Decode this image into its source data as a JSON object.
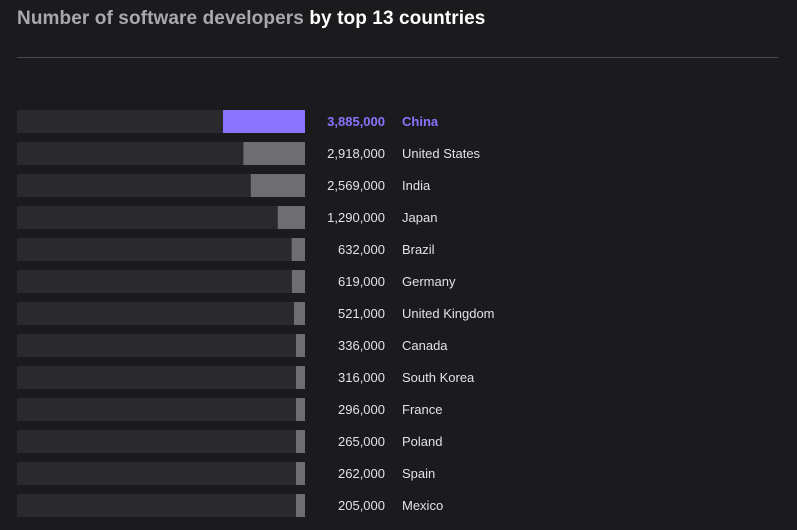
{
  "title": {
    "part1": "Number of software developers",
    "part2": "by top 13 countries"
  },
  "colors": {
    "background": "#1b1a1d",
    "track": "#2a292d",
    "bar": "#6e6d72",
    "highlight": "#8a73ff",
    "value_text": "#e2e2e4"
  },
  "chart_data": {
    "type": "bar",
    "orientation": "horizontal",
    "title": "Number of software developers by top 13 countries",
    "highlight_category": "China",
    "categories": [
      "China",
      "United States",
      "India",
      "Japan",
      "Brazil",
      "Germany",
      "United Kingdom",
      "Canada",
      "South Korea",
      "France",
      "Poland",
      "Spain",
      "Mexico"
    ],
    "values": [
      3885000,
      2918000,
      2569000,
      1290000,
      632000,
      619000,
      521000,
      336000,
      316000,
      296000,
      265000,
      262000,
      205000
    ],
    "value_labels": [
      "3,885,000",
      "2,918,000",
      "2,569,000",
      "1,290,000",
      "632,000",
      "619,000",
      "521,000",
      "336,000",
      "316,000",
      "296,000",
      "265,000",
      "262,000",
      "205,000"
    ]
  }
}
